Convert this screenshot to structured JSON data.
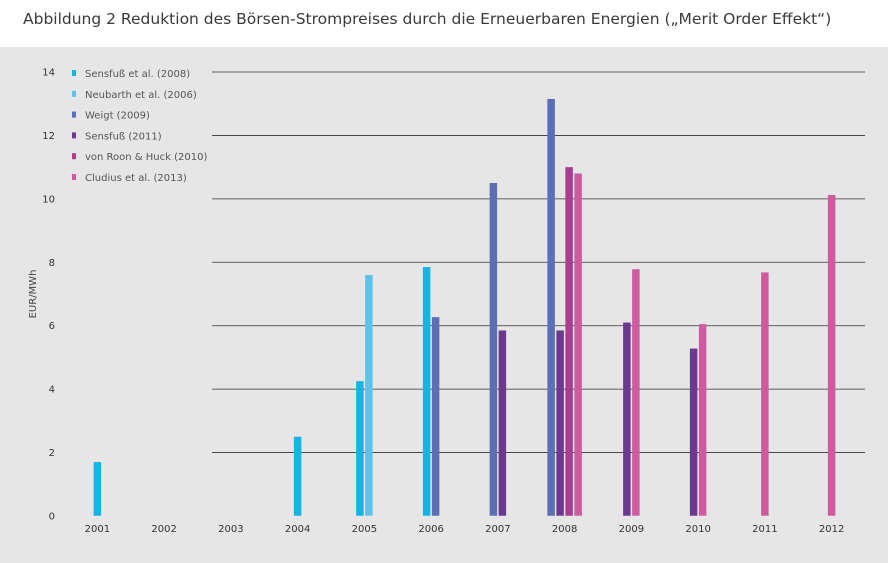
{
  "title": "Abbildung 2 Reduktion des Börsen-Strompreises durch die Erneuerbaren Energien („Merit Order Effekt“)",
  "chart_data": {
    "type": "bar",
    "ylabel": "EUR/MWh",
    "ylim": [
      0,
      14
    ],
    "yticks": [
      0,
      2,
      4,
      6,
      8,
      10,
      12,
      14
    ],
    "grid": true,
    "legend_position": "top-left",
    "categories": [
      "2001",
      "2002",
      "2003",
      "2004",
      "2005",
      "2006",
      "2007",
      "2008",
      "2009",
      "2010",
      "2011",
      "2012"
    ],
    "series": [
      {
        "name": "Sensfuß et al. (2008)",
        "color": "#16b4e3",
        "values": [
          1.7,
          null,
          null,
          2.5,
          4.25,
          7.85,
          null,
          null,
          null,
          null,
          null,
          null
        ]
      },
      {
        "name": "Neubarth et al. (2006)",
        "color": "#5ec3ea",
        "values": [
          null,
          null,
          null,
          null,
          7.6,
          null,
          null,
          null,
          null,
          null,
          null,
          null
        ]
      },
      {
        "name": "Weigt (2009)",
        "color": "#5b6fb4",
        "values": [
          null,
          null,
          null,
          null,
          null,
          6.27,
          10.5,
          13.15,
          null,
          null,
          null,
          null
        ]
      },
      {
        "name": "Sensfuß (2011)",
        "color": "#6b3a8e",
        "values": [
          null,
          null,
          null,
          null,
          null,
          null,
          5.85,
          5.85,
          6.1,
          5.28,
          null,
          null
        ]
      },
      {
        "name": "von Roon & Huck (2010)",
        "color": "#a93d8f",
        "values": [
          null,
          null,
          null,
          null,
          null,
          null,
          null,
          11.0,
          null,
          null,
          null,
          null
        ]
      },
      {
        "name": "Cludius et al. (2013)",
        "color": "#d05a9f",
        "values": [
          null,
          null,
          null,
          null,
          null,
          null,
          null,
          10.8,
          7.78,
          6.05,
          7.68,
          10.12
        ]
      }
    ]
  }
}
